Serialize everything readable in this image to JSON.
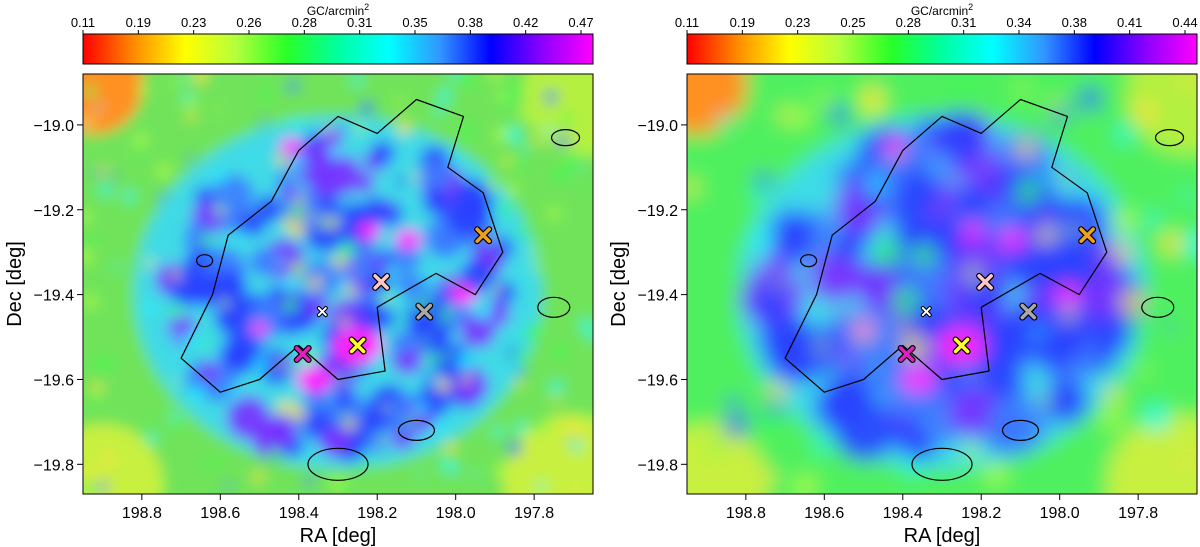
{
  "chart_data": [
    {
      "type": "heatmap",
      "panel": "left",
      "colorbar": {
        "label": "GC/arcmin",
        "label_superscript": "2",
        "ticks": [
          "0.11",
          "0.19",
          "0.23",
          "0.26",
          "0.28",
          "0.31",
          "0.35",
          "0.38",
          "0.42",
          "0.47"
        ],
        "colors": [
          "#ff0000",
          "#ff8c00",
          "#ffff00",
          "#b4ff3c",
          "#28ff28",
          "#00ffa0",
          "#00ffff",
          "#3296ff",
          "#0000ff",
          "#8c00ff",
          "#ff00ff"
        ]
      },
      "xlabel": "RA [deg]",
      "ylabel": "Dec [deg]",
      "xlim": [
        198.95,
        197.65
      ],
      "ylim": [
        -19.87,
        -18.88
      ],
      "xticks": [
        "198.8",
        "198.6",
        "198.4",
        "198.2",
        "198.0",
        "197.8"
      ],
      "xtick_values": [
        198.8,
        198.6,
        198.4,
        198.2,
        198.0,
        197.8
      ],
      "yticks": [
        "−19.0",
        "−19.2",
        "−19.4",
        "−19.6",
        "−19.8"
      ],
      "ytick_values": [
        -19.0,
        -19.2,
        -19.4,
        -19.6,
        -19.8
      ],
      "markers": [
        {
          "ra": 197.93,
          "dec": -19.26,
          "color": "#f0a020",
          "symbol": "X"
        },
        {
          "ra": 198.19,
          "dec": -19.37,
          "color": "#ffc8c8",
          "symbol": "X"
        },
        {
          "ra": 198.08,
          "dec": -19.44,
          "color": "#a8a8a8",
          "symbol": "X"
        },
        {
          "ra": 198.34,
          "dec": -19.44,
          "color": "#ffffff",
          "symbol": "x"
        },
        {
          "ra": 198.25,
          "dec": -19.52,
          "color": "#ffff30",
          "symbol": "X"
        },
        {
          "ra": 198.39,
          "dec": -19.54,
          "color": "#e020c0",
          "symbol": "X"
        }
      ]
    },
    {
      "type": "heatmap",
      "panel": "right",
      "colorbar": {
        "label": "GC/arcmin",
        "label_superscript": "2",
        "ticks": [
          "0.11",
          "0.19",
          "0.23",
          "0.25",
          "0.28",
          "0.31",
          "0.34",
          "0.38",
          "0.41",
          "0.44"
        ],
        "colors": [
          "#ff0000",
          "#ff8c00",
          "#ffff00",
          "#b4ff3c",
          "#28ff28",
          "#00ffa0",
          "#00ffff",
          "#3296ff",
          "#0000ff",
          "#8c00ff",
          "#ff00ff"
        ]
      },
      "xlabel": "RA [deg]",
      "ylabel": "Dec [deg]",
      "xlim": [
        198.95,
        197.65
      ],
      "ylim": [
        -19.87,
        -18.88
      ],
      "xticks": [
        "198.8",
        "198.6",
        "198.4",
        "198.2",
        "198.0",
        "197.8"
      ],
      "xtick_values": [
        198.8,
        198.6,
        198.4,
        198.2,
        198.0,
        197.8
      ],
      "yticks": [
        "−19.0",
        "−19.2",
        "−19.4",
        "−19.6",
        "−19.8"
      ],
      "ytick_values": [
        -19.0,
        -19.2,
        -19.4,
        -19.6,
        -19.8
      ],
      "markers": [
        {
          "ra": 197.93,
          "dec": -19.26,
          "color": "#f0a020",
          "symbol": "X"
        },
        {
          "ra": 198.19,
          "dec": -19.37,
          "color": "#ffc8c8",
          "symbol": "X"
        },
        {
          "ra": 198.08,
          "dec": -19.44,
          "color": "#a8a8a8",
          "symbol": "X"
        },
        {
          "ra": 198.34,
          "dec": -19.44,
          "color": "#ffffff",
          "symbol": "x"
        },
        {
          "ra": 198.25,
          "dec": -19.52,
          "color": "#ffff30",
          "symbol": "X"
        },
        {
          "ra": 198.39,
          "dec": -19.54,
          "color": "#e020c0",
          "symbol": "X"
        }
      ]
    }
  ]
}
